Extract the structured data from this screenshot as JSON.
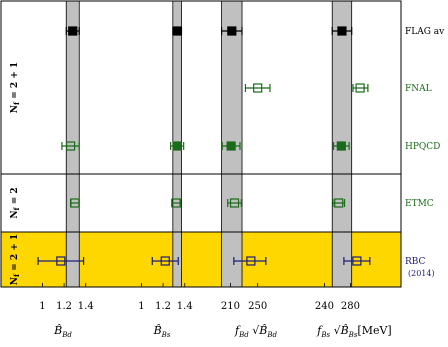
{
  "chart_data": {
    "type": "scatter",
    "colors": {
      "black": "#000000",
      "green": "#1a6b1a",
      "blue": "#1c1c7a",
      "band": "#c0c0c0",
      "highlight": "#ffd700",
      "frame": "#000000"
    },
    "panels": [
      {
        "name": "Bd",
        "xlim": [
          0.83,
          1.55
        ],
        "ticks": [
          1.0,
          1.2,
          1.4
        ],
        "xlabel": "B̂",
        "xlabel_sub": "Bd"
      },
      {
        "name": "Bs",
        "xlim": [
          0.83,
          1.55
        ],
        "ticks": [
          1.0,
          1.2,
          1.4
        ],
        "xlabel": "B̂",
        "xlabel_sub": "Bs"
      },
      {
        "name": "fBd",
        "xlim": [
          180,
          315
        ],
        "ticks": [
          210,
          250
        ],
        "xlabel": "f",
        "xlabel_sub": "Bd",
        "xlabel_root": "B̂",
        "xlabel_root_sub": "Bd"
      },
      {
        "name": "fBs",
        "xlim": [
          210,
          338
        ],
        "ticks": [
          240,
          280
        ],
        "xlabel": "f",
        "xlabel_sub": "Bs",
        "xlabel_root": "B̂",
        "xlabel_root_sub": "Bs",
        "xlabel_unit": "[MeV]"
      }
    ],
    "bands": [
      {
        "panel": "Bd",
        "low": 1.22,
        "high": 1.34
      },
      {
        "panel": "Bs",
        "low": 1.29,
        "high": 1.37
      },
      {
        "panel": "fBd",
        "low": 197,
        "high": 227
      },
      {
        "panel": "fBs",
        "low": 252,
        "high": 282
      }
    ],
    "groups": [
      {
        "label": "N_f = 2 + 1",
        "label_main": "N",
        "label_sub": "f",
        "label_rest": " = 2 + 1",
        "rows": [
          0,
          1,
          2
        ],
        "highlight": false
      },
      {
        "label": "N_f = 2",
        "label_main": "N",
        "label_sub": "f",
        "label_rest": " = 2",
        "rows": [
          3
        ],
        "highlight": false
      },
      {
        "label": "N_f = 2 + 1",
        "label_main": "N",
        "label_sub": "f",
        "label_rest": " = 2 + 1",
        "rows": [
          4
        ],
        "highlight": true
      }
    ],
    "rows": [
      {
        "label": "FLAG av",
        "sublabel": "",
        "color": "black",
        "points": [
          {
            "panel": "Bd",
            "x": 1.28,
            "lo": 1.22,
            "hi": 1.34,
            "filled": true
          },
          {
            "panel": "Bs",
            "x": 1.33,
            "lo": 1.29,
            "hi": 1.37,
            "filled": true
          },
          {
            "panel": "fBd",
            "x": 212,
            "lo": 197,
            "hi": 227,
            "filled": true
          },
          {
            "panel": "fBs",
            "x": 267,
            "lo": 252,
            "hi": 282,
            "filled": true
          }
        ]
      },
      {
        "label": "FNAL",
        "sublabel": "",
        "color": "green",
        "points": [
          {
            "panel": "fBd",
            "x": 250,
            "lo": 232,
            "hi": 268,
            "filled": false
          },
          {
            "panel": "fBs",
            "x": 295,
            "lo": 284,
            "hi": 307,
            "filled": false
          }
        ]
      },
      {
        "label": "HPQCD",
        "sublabel": "",
        "color": "green",
        "points": [
          {
            "panel": "Bd",
            "x": 1.26,
            "lo": 1.18,
            "hi": 1.34,
            "filled": false
          },
          {
            "panel": "Bs",
            "x": 1.33,
            "lo": 1.27,
            "hi": 1.39,
            "filled": true
          },
          {
            "panel": "fBd",
            "x": 211,
            "lo": 198,
            "hi": 224,
            "filled": true
          },
          {
            "panel": "fBs",
            "x": 266,
            "lo": 254,
            "hi": 278,
            "filled": true
          }
        ]
      },
      {
        "label": "ETMC",
        "sublabel": "",
        "color": "green",
        "points": [
          {
            "panel": "Bd",
            "x": 1.3,
            "lo": 1.26,
            "hi": 1.34,
            "filled": false
          },
          {
            "panel": "Bs",
            "x": 1.32,
            "lo": 1.28,
            "hi": 1.36,
            "filled": false
          },
          {
            "panel": "fBd",
            "x": 216,
            "lo": 206,
            "hi": 226,
            "filled": false
          },
          {
            "panel": "fBs",
            "x": 262,
            "lo": 253,
            "hi": 271,
            "filled": false
          }
        ]
      },
      {
        "label": "RBC",
        "sublabel": "(2014)",
        "color": "blue",
        "points": [
          {
            "panel": "Bd",
            "x": 1.17,
            "lo": 0.96,
            "hi": 1.38,
            "filled": false
          },
          {
            "panel": "Bs",
            "x": 1.22,
            "lo": 1.1,
            "hi": 1.34,
            "filled": false
          },
          {
            "panel": "fBd",
            "x": 240,
            "lo": 215,
            "hi": 262,
            "filled": false
          },
          {
            "panel": "fBs",
            "x": 290,
            "lo": 270,
            "hi": 310,
            "filled": false
          }
        ]
      }
    ]
  }
}
